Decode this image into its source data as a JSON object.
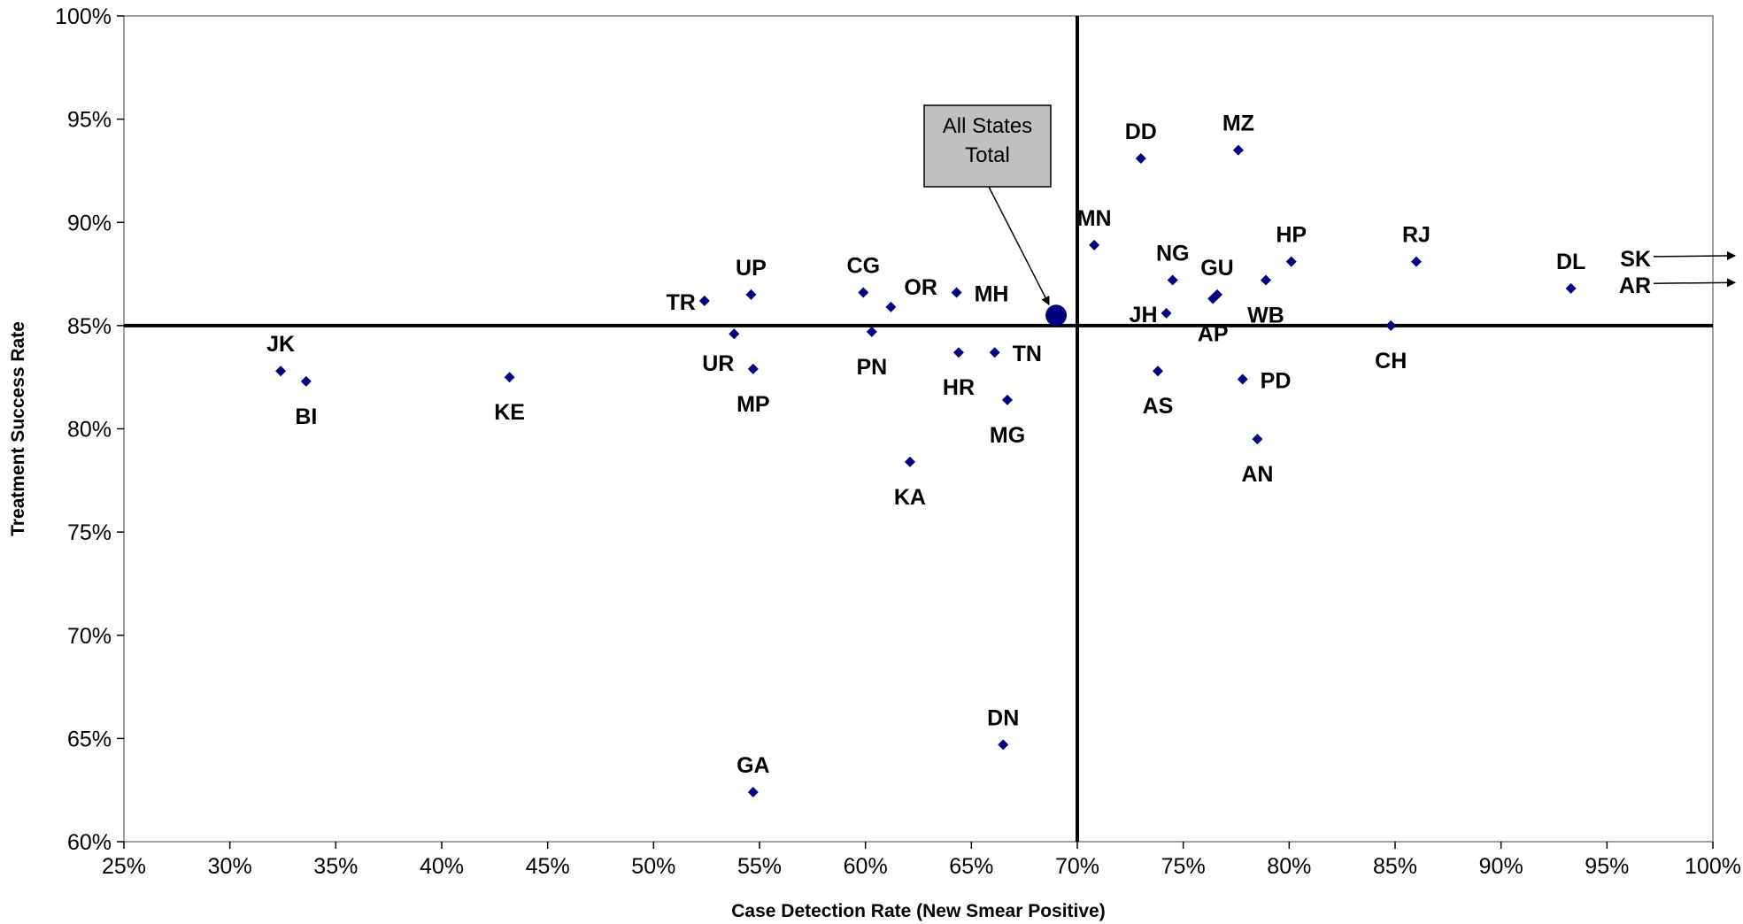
{
  "chart_data": {
    "type": "scatter",
    "xlabel": "Case Detection Rate (New Smear Positive)",
    "ylabel": "Treatment Success Rate",
    "xlim": [
      0.25,
      1.0
    ],
    "ylim": [
      0.6,
      1.0
    ],
    "x_ticks": [
      "25%",
      "30%",
      "35%",
      "40%",
      "45%",
      "50%",
      "55%",
      "60%",
      "65%",
      "70%",
      "75%",
      "80%",
      "85%",
      "90%",
      "95%",
      "100%"
    ],
    "y_ticks": [
      "60%",
      "65%",
      "70%",
      "75%",
      "80%",
      "85%",
      "90%",
      "95%",
      "100%"
    ],
    "grid": false,
    "reference_lines": {
      "x": 0.7,
      "y": 0.85
    },
    "marker_color": "#000080",
    "points": [
      {
        "label": "JK",
        "x": 0.324,
        "y": 0.828,
        "label_pos": "above"
      },
      {
        "label": "BI",
        "x": 0.336,
        "y": 0.823,
        "label_pos": "below"
      },
      {
        "label": "KE",
        "x": 0.432,
        "y": 0.825,
        "label_pos": "below"
      },
      {
        "label": "TR",
        "x": 0.524,
        "y": 0.862,
        "label_pos": "left"
      },
      {
        "label": "UR",
        "x": 0.538,
        "y": 0.846,
        "label_pos": "below-left"
      },
      {
        "label": "UP",
        "x": 0.546,
        "y": 0.865,
        "label_pos": "above"
      },
      {
        "label": "MP",
        "x": 0.547,
        "y": 0.829,
        "label_pos": "below"
      },
      {
        "label": "GA",
        "x": 0.547,
        "y": 0.624,
        "label_pos": "above"
      },
      {
        "label": "CG",
        "x": 0.599,
        "y": 0.866,
        "label_pos": "above"
      },
      {
        "label": "OR",
        "x": 0.612,
        "y": 0.859,
        "label_pos": "above-right"
      },
      {
        "label": "PN",
        "x": 0.603,
        "y": 0.847,
        "label_pos": "below"
      },
      {
        "label": "KA",
        "x": 0.621,
        "y": 0.784,
        "label_pos": "below"
      },
      {
        "label": "MH",
        "x": 0.643,
        "y": 0.866,
        "label_pos": "right"
      },
      {
        "label": "HR",
        "x": 0.644,
        "y": 0.837,
        "label_pos": "below"
      },
      {
        "label": "TN",
        "x": 0.661,
        "y": 0.837,
        "label_pos": "right"
      },
      {
        "label": "MG",
        "x": 0.667,
        "y": 0.814,
        "label_pos": "below"
      },
      {
        "label": "DN",
        "x": 0.665,
        "y": 0.647,
        "label_pos": "above"
      },
      {
        "label": "MN",
        "x": 0.708,
        "y": 0.889,
        "label_pos": "above"
      },
      {
        "label": "DD",
        "x": 0.73,
        "y": 0.931,
        "label_pos": "above"
      },
      {
        "label": "JH",
        "x": 0.742,
        "y": 0.856,
        "label_pos": "left"
      },
      {
        "label": "NG",
        "x": 0.745,
        "y": 0.872,
        "label_pos": "above"
      },
      {
        "label": "AS",
        "x": 0.738,
        "y": 0.828,
        "label_pos": "below"
      },
      {
        "label": "GU",
        "x": 0.766,
        "y": 0.865,
        "label_pos": "above"
      },
      {
        "label": "AP",
        "x": 0.764,
        "y": 0.863,
        "label_pos": "below"
      },
      {
        "label": "MZ",
        "x": 0.776,
        "y": 0.935,
        "label_pos": "above"
      },
      {
        "label": "PD",
        "x": 0.778,
        "y": 0.824,
        "label_pos": "right"
      },
      {
        "label": "AN",
        "x": 0.785,
        "y": 0.795,
        "label_pos": "below"
      },
      {
        "label": "WB",
        "x": 0.789,
        "y": 0.872,
        "label_pos": "below"
      },
      {
        "label": "HP",
        "x": 0.801,
        "y": 0.881,
        "label_pos": "above"
      },
      {
        "label": "CH",
        "x": 0.848,
        "y": 0.85,
        "label_pos": "below"
      },
      {
        "label": "RJ",
        "x": 0.86,
        "y": 0.881,
        "label_pos": "above"
      },
      {
        "label": "DL",
        "x": 0.933,
        "y": 0.868,
        "label_pos": "above"
      }
    ],
    "aggregate_point": {
      "x": 0.69,
      "y": 0.855
    },
    "callout": {
      "line1": "All States",
      "line2": "Total",
      "fill": "#c0c0c0"
    },
    "off_chart": [
      {
        "label": "SK",
        "y": 0.883
      },
      {
        "label": "AR",
        "y": 0.87
      }
    ]
  }
}
